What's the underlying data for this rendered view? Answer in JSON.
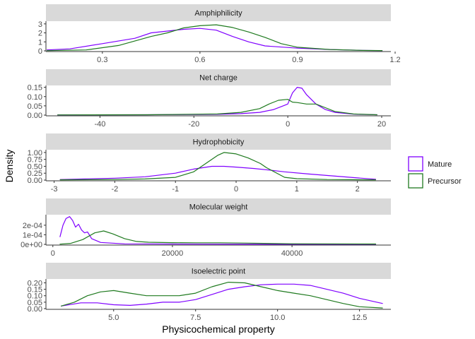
{
  "chart_data": {
    "type": "line",
    "xlabel": "Physicochemical property",
    "ylabel": "Density",
    "legend": {
      "position": "right",
      "entries": [
        {
          "name": "Mature",
          "color": "#7f00ff"
        },
        {
          "name": "Precursor",
          "color": "#1f7a1f"
        }
      ]
    },
    "grid": false,
    "panels": [
      {
        "title": "Amphiphilicity",
        "xlim": [
          0.12,
          1.2
        ],
        "ylim": [
          0,
          3.3
        ],
        "x_ticks": [
          {
            "v": 0.3,
            "label": "0.3"
          },
          {
            "v": 0.6,
            "label": "0.6"
          },
          {
            "v": 0.9,
            "label": "0.9"
          },
          {
            "v": 1.2,
            "label": "1.2"
          }
        ],
        "y_ticks": [
          {
            "v": 0,
            "label": "0"
          },
          {
            "v": 1,
            "label": "1"
          },
          {
            "v": 2,
            "label": "2"
          },
          {
            "v": 3,
            "label": "3"
          }
        ],
        "series": [
          {
            "name": "Mature",
            "color": "#7f00ff",
            "points": [
              [
                0.13,
                0.1
              ],
              [
                0.2,
                0.22
              ],
              [
                0.3,
                0.8
              ],
              [
                0.4,
                1.4
              ],
              [
                0.45,
                2.0
              ],
              [
                0.5,
                2.2
              ],
              [
                0.55,
                2.4
              ],
              [
                0.6,
                2.5
              ],
              [
                0.65,
                2.3
              ],
              [
                0.7,
                1.6
              ],
              [
                0.75,
                1.0
              ],
              [
                0.8,
                0.55
              ],
              [
                0.9,
                0.3
              ],
              [
                1.0,
                0.15
              ],
              [
                1.1,
                0.05
              ],
              [
                1.16,
                0.02
              ]
            ]
          },
          {
            "name": "Precursor",
            "color": "#1f7a1f",
            "points": [
              [
                0.13,
                0.02
              ],
              [
                0.25,
                0.1
              ],
              [
                0.35,
                0.6
              ],
              [
                0.45,
                1.6
              ],
              [
                0.5,
                2.0
              ],
              [
                0.55,
                2.55
              ],
              [
                0.6,
                2.8
              ],
              [
                0.65,
                2.9
              ],
              [
                0.7,
                2.6
              ],
              [
                0.75,
                2.1
              ],
              [
                0.8,
                1.5
              ],
              [
                0.85,
                0.8
              ],
              [
                0.9,
                0.4
              ],
              [
                1.0,
                0.15
              ],
              [
                1.1,
                0.05
              ],
              [
                1.16,
                0.03
              ]
            ]
          }
        ]
      },
      {
        "title": "Net charge",
        "xlim": [
          -50,
          20
        ],
        "ylim": [
          0,
          0.16
        ],
        "x_ticks": [
          {
            "v": -40,
            "label": "-40"
          },
          {
            "v": -20,
            "label": "-20"
          },
          {
            "v": 0,
            "label": "0"
          },
          {
            "v": 20,
            "label": "20"
          }
        ],
        "y_ticks": [
          {
            "v": 0,
            "label": "0.00"
          },
          {
            "v": 0.05,
            "label": "0.05"
          },
          {
            "v": 0.1,
            "label": "0.10"
          },
          {
            "v": 0.15,
            "label": "0.15"
          }
        ],
        "series": [
          {
            "name": "Mature",
            "color": "#7f00ff",
            "points": [
              [
                -49,
                0.001
              ],
              [
                -30,
                0.002
              ],
              [
                -15,
                0.004
              ],
              [
                -10,
                0.008
              ],
              [
                -6,
                0.015
              ],
              [
                -3,
                0.03
              ],
              [
                -1,
                0.05
              ],
              [
                0,
                0.06
              ],
              [
                1,
                0.12
              ],
              [
                2,
                0.15
              ],
              [
                3,
                0.145
              ],
              [
                4,
                0.11
              ],
              [
                6,
                0.06
              ],
              [
                8,
                0.03
              ],
              [
                10,
                0.015
              ],
              [
                14,
                0.005
              ],
              [
                19,
                0.002
              ]
            ]
          },
          {
            "name": "Precursor",
            "color": "#1f7a1f",
            "points": [
              [
                -49,
                0.001
              ],
              [
                -30,
                0.002
              ],
              [
                -15,
                0.006
              ],
              [
                -10,
                0.015
              ],
              [
                -6,
                0.035
              ],
              [
                -4,
                0.06
              ],
              [
                -2,
                0.08
              ],
              [
                0,
                0.085
              ],
              [
                1,
                0.07
              ],
              [
                2,
                0.068
              ],
              [
                4,
                0.06
              ],
              [
                6,
                0.06
              ],
              [
                8,
                0.04
              ],
              [
                10,
                0.02
              ],
              [
                14,
                0.006
              ],
              [
                19,
                0.002
              ]
            ]
          }
        ]
      },
      {
        "title": "Hydrophobicity",
        "xlim": [
          -3.1,
          2.4
        ],
        "ylim": [
          0,
          1.1
        ],
        "x_ticks": [
          {
            "v": -3,
            "label": "-3"
          },
          {
            "v": -2,
            "label": "-2"
          },
          {
            "v": -1,
            "label": "-1"
          },
          {
            "v": 0,
            "label": "0"
          },
          {
            "v": 1,
            "label": "1"
          },
          {
            "v": 2,
            "label": "2"
          }
        ],
        "y_ticks": [
          {
            "v": 0,
            "label": "0.00"
          },
          {
            "v": 0.25,
            "label": "0.25"
          },
          {
            "v": 0.5,
            "label": "0.50"
          },
          {
            "v": 0.75,
            "label": "0.75"
          },
          {
            "v": 1,
            "label": "1.00"
          }
        ],
        "series": [
          {
            "name": "Mature",
            "color": "#7f00ff",
            "points": [
              [
                -2.9,
                0.02
              ],
              [
                -2.5,
                0.04
              ],
              [
                -2.0,
                0.07
              ],
              [
                -1.5,
                0.12
              ],
              [
                -1.0,
                0.25
              ],
              [
                -0.7,
                0.4
              ],
              [
                -0.4,
                0.5
              ],
              [
                -0.2,
                0.5
              ],
              [
                0.0,
                0.47
              ],
              [
                0.3,
                0.42
              ],
              [
                0.6,
                0.35
              ],
              [
                0.8,
                0.3
              ],
              [
                1.2,
                0.22
              ],
              [
                1.6,
                0.15
              ],
              [
                2.0,
                0.08
              ],
              [
                2.3,
                0.03
              ]
            ]
          },
          {
            "name": "Precursor",
            "color": "#1f7a1f",
            "points": [
              [
                -2.9,
                0.01
              ],
              [
                -2.0,
                0.02
              ],
              [
                -1.5,
                0.04
              ],
              [
                -1.0,
                0.1
              ],
              [
                -0.7,
                0.3
              ],
              [
                -0.5,
                0.6
              ],
              [
                -0.3,
                0.9
              ],
              [
                -0.2,
                1.0
              ],
              [
                0.0,
                0.95
              ],
              [
                0.2,
                0.8
              ],
              [
                0.4,
                0.6
              ],
              [
                0.5,
                0.45
              ],
              [
                0.8,
                0.1
              ],
              [
                1.0,
                0.05
              ],
              [
                1.5,
                0.02
              ],
              [
                2.3,
                0.01
              ]
            ]
          }
        ]
      },
      {
        "title": "Molecular weight",
        "xlim": [
          -800,
          55000
        ],
        "ylim": [
          0,
          0.00031
        ],
        "x_ticks": [
          {
            "v": 0,
            "label": "0"
          },
          {
            "v": 20000,
            "label": "20000"
          },
          {
            "v": 40000,
            "label": "40000"
          }
        ],
        "y_ticks": [
          {
            "v": 0,
            "label": "0e+00"
          },
          {
            "v": 0.0001,
            "label": "1e-04"
          },
          {
            "v": 0.0002,
            "label": "2e-04"
          }
        ],
        "series": [
          {
            "name": "Mature",
            "color": "#7f00ff",
            "points": [
              [
                1200,
                8e-05
              ],
              [
                1700,
                0.0002
              ],
              [
                2200,
                0.00027
              ],
              [
                2800,
                0.00029
              ],
              [
                3300,
                0.00025
              ],
              [
                3800,
                0.00018
              ],
              [
                4300,
                0.00021
              ],
              [
                4800,
                0.00015
              ],
              [
                5300,
                0.00012
              ],
              [
                5800,
                0.00013
              ],
              [
                6500,
                6e-05
              ],
              [
                8000,
                2e-05
              ],
              [
                12000,
                5e-06
              ],
              [
                25000,
                2e-06
              ],
              [
                40000,
                1e-06
              ],
              [
                54000,
                1e-06
              ]
            ]
          },
          {
            "name": "Precursor",
            "color": "#1f7a1f",
            "points": [
              [
                1200,
                2e-06
              ],
              [
                3000,
                1e-05
              ],
              [
                5000,
                5e-05
              ],
              [
                7000,
                0.00012
              ],
              [
                8500,
                0.00014
              ],
              [
                10000,
                0.00011
              ],
              [
                12000,
                6e-05
              ],
              [
                14000,
                3e-05
              ],
              [
                16000,
                2.2e-05
              ],
              [
                20000,
                1.8e-05
              ],
              [
                24000,
                1.6e-05
              ],
              [
                28000,
                1.6e-05
              ],
              [
                32000,
                1.3e-05
              ],
              [
                40000,
                6e-06
              ],
              [
                54000,
                4e-06
              ]
            ]
          }
        ]
      },
      {
        "title": "Isoelectric point",
        "xlim": [
          3.0,
          13.5
        ],
        "ylim": [
          0,
          0.23
        ],
        "x_ticks": [
          {
            "v": 5,
            "label": "5.0"
          },
          {
            "v": 7.5,
            "label": "7.5"
          },
          {
            "v": 10,
            "label": "10.0"
          },
          {
            "v": 12.5,
            "label": "12.5"
          }
        ],
        "y_ticks": [
          {
            "v": 0,
            "label": "0.00"
          },
          {
            "v": 0.05,
            "label": "0.05"
          },
          {
            "v": 0.1,
            "label": "0.10"
          },
          {
            "v": 0.15,
            "label": "0.15"
          },
          {
            "v": 0.2,
            "label": "0.20"
          }
        ],
        "series": [
          {
            "name": "Mature",
            "color": "#7f00ff",
            "points": [
              [
                3.4,
                0.02
              ],
              [
                4.0,
                0.045
              ],
              [
                4.5,
                0.045
              ],
              [
                5.0,
                0.03
              ],
              [
                5.5,
                0.025
              ],
              [
                6.0,
                0.035
              ],
              [
                6.5,
                0.05
              ],
              [
                7.0,
                0.05
              ],
              [
                7.5,
                0.07
              ],
              [
                8.0,
                0.11
              ],
              [
                8.5,
                0.15
              ],
              [
                9.0,
                0.17
              ],
              [
                9.5,
                0.185
              ],
              [
                10.0,
                0.19
              ],
              [
                10.5,
                0.19
              ],
              [
                11.0,
                0.18
              ],
              [
                11.5,
                0.15
              ],
              [
                12.0,
                0.12
              ],
              [
                12.5,
                0.08
              ],
              [
                13.2,
                0.04
              ]
            ]
          },
          {
            "name": "Precursor",
            "color": "#1f7a1f",
            "points": [
              [
                3.4,
                0.02
              ],
              [
                3.8,
                0.05
              ],
              [
                4.2,
                0.1
              ],
              [
                4.6,
                0.13
              ],
              [
                5.0,
                0.14
              ],
              [
                5.5,
                0.12
              ],
              [
                6.0,
                0.1
              ],
              [
                6.5,
                0.1
              ],
              [
                7.0,
                0.1
              ],
              [
                7.5,
                0.12
              ],
              [
                8.0,
                0.17
              ],
              [
                8.5,
                0.205
              ],
              [
                9.0,
                0.2
              ],
              [
                9.5,
                0.17
              ],
              [
                10.0,
                0.14
              ],
              [
                10.5,
                0.12
              ],
              [
                11.0,
                0.1
              ],
              [
                11.5,
                0.07
              ],
              [
                12.0,
                0.04
              ],
              [
                12.5,
                0.015
              ],
              [
                13.2,
                0.005
              ]
            ]
          }
        ]
      }
    ]
  }
}
